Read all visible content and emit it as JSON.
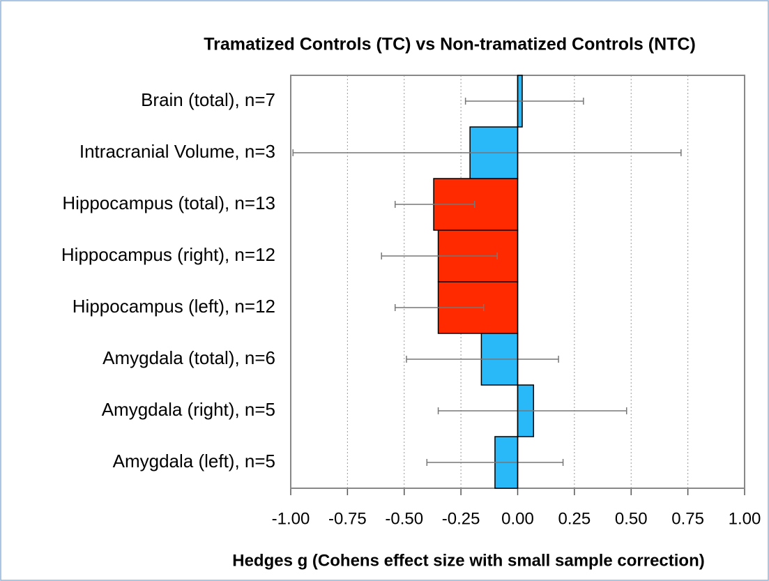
{
  "chart_data": {
    "type": "hbar",
    "title": "Tramatized Controls (TC) vs Non-tramatized Controls (NTC)",
    "x_label": "Hedges g (Cohens effect size with small sample correction)",
    "categories": [
      "Brain (total), n=7",
      "Intracranial Volume, n=3",
      "Hippocampus (total), n=13",
      "Hippocampus (right), n=12",
      "Hippocampus (left), n=12",
      "Amygdala (total), n=6",
      "Amygdala (right), n=5",
      "Amygdala (left), n=5"
    ],
    "values": [
      0.02,
      -0.21,
      -0.37,
      -0.35,
      -0.35,
      -0.16,
      0.07,
      -0.1
    ],
    "ci_low": [
      -0.23,
      -0.99,
      -0.54,
      -0.6,
      -0.54,
      -0.49,
      -0.35,
      -0.4
    ],
    "ci_high": [
      0.29,
      0.72,
      -0.19,
      -0.09,
      -0.15,
      0.18,
      0.48,
      0.2
    ],
    "colors": [
      "#29b8f8",
      "#29b8f8",
      "#ff2a00",
      "#ff2a00",
      "#ff2a00",
      "#29b8f8",
      "#29b8f8",
      "#29b8f8"
    ],
    "xlim": [
      -1,
      1
    ],
    "xticks": [
      {
        "value": -1,
        "label": "-1.00"
      },
      {
        "value": -0.75,
        "label": "-0.75"
      },
      {
        "value": -0.5,
        "label": "-0.50"
      },
      {
        "value": -0.25,
        "label": "-0.25"
      },
      {
        "value": 0,
        "label": "0.00"
      },
      {
        "value": 0.25,
        "label": "0.25"
      },
      {
        "value": 0.5,
        "label": "0.50"
      },
      {
        "value": 0.75,
        "label": "0.75"
      },
      {
        "value": 1,
        "label": "1.00"
      }
    ],
    "grid": true
  }
}
